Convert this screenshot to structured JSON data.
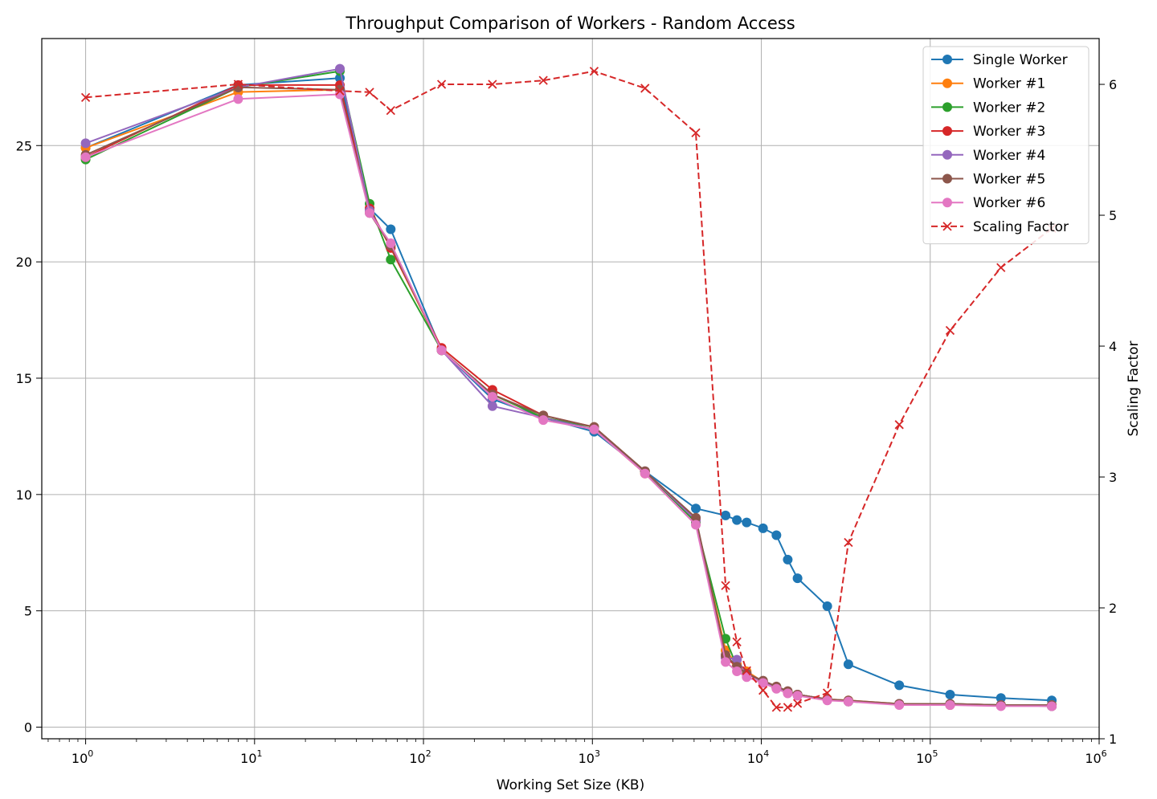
{
  "chart_data": {
    "type": "line",
    "title": "Throughput Comparison of Workers - Random Access",
    "xlabel": "Working Set Size (KB)",
    "ylabel": "",
    "y2label": "Scaling Factor",
    "x_scale": "log",
    "xlim": [
      0.55,
      1000000
    ],
    "ylim": [
      -0.5,
      29.6
    ],
    "y2lim": [
      1.0,
      6.35
    ],
    "grid": true,
    "legend_position": "upper-right",
    "x_ticks": [
      {
        "value": 1,
        "base": "10",
        "exp": "0"
      },
      {
        "value": 10,
        "base": "10",
        "exp": "1"
      },
      {
        "value": 100,
        "base": "10",
        "exp": "2"
      },
      {
        "value": 1000,
        "base": "10",
        "exp": "3"
      },
      {
        "value": 10000,
        "base": "10",
        "exp": "4"
      },
      {
        "value": 100000,
        "base": "10",
        "exp": "5"
      },
      {
        "value": 1000000,
        "base": "10",
        "exp": "6"
      }
    ],
    "y_ticks": [
      0,
      5,
      10,
      15,
      20,
      25
    ],
    "y2_ticks": [
      1,
      2,
      3,
      4,
      5,
      6
    ],
    "series": [
      {
        "name": "Single Worker",
        "color": "#1f77b4",
        "axis": "left",
        "marker": "circle",
        "dash": false,
        "x": [
          1,
          8,
          32,
          48,
          64,
          128,
          256,
          512,
          1024,
          2048,
          4096,
          6144,
          7168,
          8192,
          10240,
          12288,
          14336,
          16384,
          24576,
          32768,
          65536,
          131072,
          262144,
          524288
        ],
        "y": [
          24.9,
          27.6,
          27.9,
          22.3,
          21.4,
          16.2,
          14.1,
          13.3,
          12.7,
          11.0,
          9.4,
          9.1,
          8.9,
          8.8,
          8.55,
          8.25,
          7.2,
          6.4,
          5.2,
          2.7,
          1.8,
          1.4,
          1.25,
          1.15
        ]
      },
      {
        "name": "Worker #1",
        "color": "#ff7f0e",
        "axis": "left",
        "marker": "circle",
        "dash": false,
        "x": [
          1,
          8,
          32,
          48,
          64,
          128,
          256,
          512,
          1024,
          2048,
          4096,
          6144,
          7168,
          8192,
          10240,
          12288,
          14336,
          16384,
          24576,
          32768,
          65536,
          131072,
          262144,
          524288
        ],
        "y": [
          24.9,
          27.3,
          27.4,
          22.3,
          20.6,
          16.2,
          14.3,
          13.3,
          12.8,
          10.9,
          8.9,
          3.3,
          2.7,
          2.4,
          1.95,
          1.7,
          1.5,
          1.4,
          1.2,
          1.15,
          1.0,
          1.0,
          0.95,
          0.95
        ]
      },
      {
        "name": "Worker #2",
        "color": "#2ca02c",
        "axis": "left",
        "marker": "circle",
        "dash": false,
        "x": [
          1,
          8,
          32,
          48,
          64,
          128,
          256,
          512,
          1024,
          2048,
          4096,
          6144,
          7168,
          8192,
          10240,
          12288,
          14336,
          16384,
          24576,
          32768,
          65536,
          131072,
          262144,
          524288
        ],
        "y": [
          24.4,
          27.5,
          28.2,
          22.5,
          20.1,
          16.2,
          14.3,
          13.3,
          12.9,
          11.0,
          8.8,
          3.8,
          2.6,
          2.3,
          1.95,
          1.7,
          1.5,
          1.4,
          1.2,
          1.1,
          1.0,
          1.0,
          0.95,
          0.9
        ]
      },
      {
        "name": "Worker #3",
        "color": "#d62728",
        "axis": "left",
        "marker": "circle",
        "dash": false,
        "x": [
          1,
          8,
          32,
          48,
          64,
          128,
          256,
          512,
          1024,
          2048,
          4096,
          6144,
          7168,
          8192,
          10240,
          12288,
          14336,
          16384,
          24576,
          32768,
          65536,
          131072,
          262144,
          524288
        ],
        "y": [
          24.5,
          27.6,
          27.6,
          22.3,
          20.6,
          16.3,
          14.5,
          13.4,
          12.9,
          11.0,
          8.9,
          3.0,
          2.6,
          2.3,
          1.95,
          1.7,
          1.5,
          1.4,
          1.2,
          1.1,
          1.0,
          0.95,
          0.95,
          0.9
        ]
      },
      {
        "name": "Worker #4",
        "color": "#9467bd",
        "axis": "left",
        "marker": "circle",
        "dash": false,
        "x": [
          1,
          8,
          32,
          48,
          64,
          128,
          256,
          512,
          1024,
          2048,
          4096,
          6144,
          7168,
          8192,
          10240,
          12288,
          14336,
          16384,
          24576,
          32768,
          65536,
          131072,
          262144,
          524288
        ],
        "y": [
          25.1,
          27.5,
          28.3,
          22.2,
          20.7,
          16.2,
          13.8,
          13.3,
          12.8,
          11.0,
          8.9,
          3.0,
          2.9,
          2.3,
          1.95,
          1.7,
          1.5,
          1.4,
          1.2,
          1.1,
          1.0,
          1.0,
          0.95,
          0.9
        ]
      },
      {
        "name": "Worker #5",
        "color": "#8c564b",
        "axis": "left",
        "marker": "circle",
        "dash": false,
        "x": [
          1,
          8,
          32,
          48,
          64,
          128,
          256,
          512,
          1024,
          2048,
          4096,
          6144,
          7168,
          8192,
          10240,
          12288,
          14336,
          16384,
          24576,
          32768,
          65536,
          131072,
          262144,
          524288
        ],
        "y": [
          24.6,
          27.5,
          27.4,
          22.1,
          20.7,
          16.2,
          14.3,
          13.4,
          12.9,
          11.0,
          9.0,
          3.1,
          2.6,
          2.3,
          2.0,
          1.75,
          1.55,
          1.4,
          1.2,
          1.15,
          1.0,
          1.0,
          0.95,
          0.95
        ]
      },
      {
        "name": "Worker #6",
        "color": "#e377c2",
        "axis": "left",
        "marker": "circle",
        "dash": false,
        "x": [
          1,
          8,
          32,
          48,
          64,
          128,
          256,
          512,
          1024,
          2048,
          4096,
          6144,
          7168,
          8192,
          10240,
          12288,
          14336,
          16384,
          24576,
          32768,
          65536,
          131072,
          262144,
          524288
        ],
        "y": [
          24.5,
          27.0,
          27.2,
          22.1,
          20.8,
          16.2,
          14.2,
          13.2,
          12.8,
          10.9,
          8.7,
          2.8,
          2.4,
          2.15,
          1.9,
          1.65,
          1.45,
          1.35,
          1.15,
          1.1,
          0.95,
          0.95,
          0.9,
          0.9
        ]
      },
      {
        "name": "Scaling Factor",
        "color": "#d62728",
        "axis": "right",
        "marker": "x",
        "dash": true,
        "x": [
          1,
          8,
          32,
          48,
          64,
          128,
          256,
          512,
          1024,
          2048,
          4096,
          6144,
          7168,
          8192,
          10240,
          12288,
          14336,
          16384,
          24576,
          32768,
          65536,
          131072,
          262144,
          524288
        ],
        "y": [
          5.9,
          6.0,
          5.95,
          5.94,
          5.8,
          6.0,
          6.0,
          6.03,
          6.1,
          5.97,
          5.63,
          2.17,
          1.74,
          1.52,
          1.37,
          1.24,
          1.24,
          1.27,
          1.35,
          2.5,
          3.4,
          4.12,
          4.6,
          4.9
        ]
      }
    ]
  }
}
